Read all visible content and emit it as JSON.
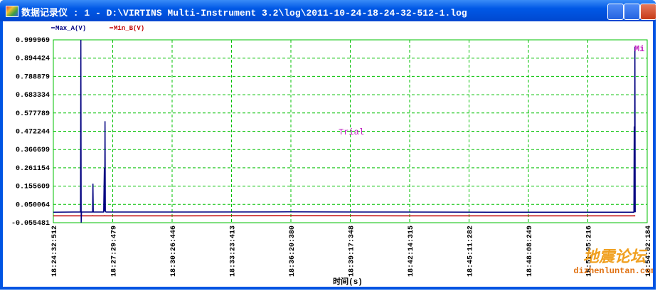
{
  "window": {
    "title": "数据记录仪 : 1 - D:\\VIRTINS Multi-Instrument 3.2\\log\\2011-10-24-18-24-32-512-1.log"
  },
  "chart_data": {
    "type": "line",
    "x_label": "时间(s)",
    "annotations": [
      "Trial",
      "Mi"
    ],
    "x": [
      0,
      60,
      81,
      82,
      83,
      84,
      117,
      118,
      119,
      120,
      150,
      152,
      153,
      154,
      155,
      157,
      400,
      700,
      1030,
      1300,
      1600,
      1730,
      1731,
      1732,
      1733,
      1734
    ],
    "series": [
      {
        "name": "Max_A(V)",
        "color": "#000080",
        "values": [
          0.005,
          0.006,
          0.006,
          1.0,
          -0.055,
          0.006,
          0.006,
          0.17,
          0.01,
          0.006,
          0.006,
          0.26,
          0.01,
          0.53,
          0.01,
          0.006,
          0.006,
          0.007,
          0.006,
          0.005,
          0.005,
          0.005,
          0.5,
          0.005,
          0.96,
          0.005
        ]
      },
      {
        "name": "Min_B(V)",
        "color": "#c00000",
        "values": [
          -0.016,
          -0.016,
          -0.016,
          -0.015,
          -0.016,
          -0.016,
          -0.016,
          -0.015,
          -0.016,
          -0.016,
          -0.016,
          -0.016,
          -0.015,
          -0.016,
          -0.016,
          -0.016,
          -0.016,
          -0.015,
          -0.016,
          -0.016,
          -0.016,
          -0.016,
          -0.015,
          -0.016,
          -0.016,
          -0.016
        ]
      }
    ],
    "xlim": [
      0,
      1769.672
    ],
    "xticks": [
      {
        "value": 0,
        "label": "18:24:32:512"
      },
      {
        "value": 176.967,
        "label": "18:27:29:479"
      },
      {
        "value": 353.934,
        "label": "18:30:26:446"
      },
      {
        "value": 530.901,
        "label": "18:33:23:413"
      },
      {
        "value": 707.868,
        "label": "18:36:20:380"
      },
      {
        "value": 884.836,
        "label": "18:39:17:348"
      },
      {
        "value": 1061.803,
        "label": "18:42:14:315"
      },
      {
        "value": 1238.77,
        "label": "18:45:11:282"
      },
      {
        "value": 1415.737,
        "label": "18:48:08:249"
      },
      {
        "value": 1592.704,
        "label": "18:51:05:216"
      },
      {
        "value": 1769.672,
        "label": "18:54:02:184"
      }
    ],
    "ylim": [
      -0.055481,
      0.999969
    ],
    "yticks": [
      0.999969,
      0.894424,
      0.788879,
      0.683334,
      0.577789,
      0.472244,
      0.366699,
      0.261154,
      0.155609,
      0.050064,
      -0.055481
    ],
    "grid": true,
    "grid_color": "#00c000",
    "frame_color": "#00c000"
  },
  "watermark": {
    "name": "地震论坛",
    "url": "dizhenluntan.com"
  }
}
